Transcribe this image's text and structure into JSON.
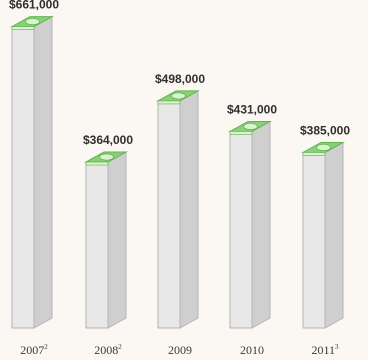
{
  "chart_data": {
    "type": "bar",
    "categories": [
      "2007",
      "2008",
      "2009",
      "2010",
      "2011"
    ],
    "category_superscripts": [
      "2",
      "2",
      "",
      "",
      "3"
    ],
    "values": [
      661000,
      364000,
      498000,
      431000,
      385000
    ],
    "value_labels": [
      "$661,000",
      "$364,000",
      "$498,000",
      "$431,000",
      "$385,000"
    ],
    "ylim": [
      0,
      700000
    ],
    "grid": false,
    "legend": "none"
  },
  "colors": {
    "bar_front": "#e8e8e8",
    "bar_side": "#cfcfcf",
    "bar_outline": "#b5b5b5",
    "money_green": "#8ccf7a",
    "money_dark": "#5fb64c",
    "money_light": "#d9f2cf",
    "background": "#fbf7f2"
  },
  "icons": [
    "money-stack-icon"
  ]
}
